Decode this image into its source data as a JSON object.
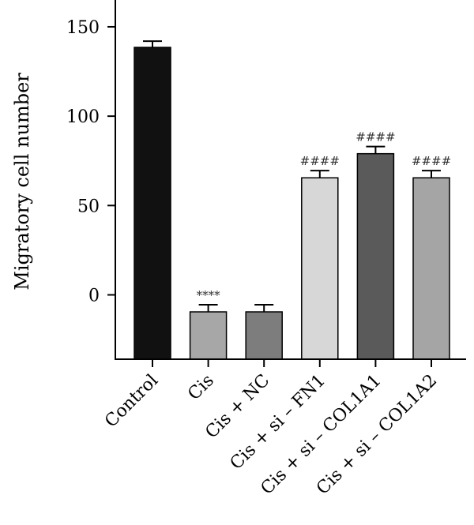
{
  "chart_data": {
    "type": "bar",
    "title": "",
    "xlabel": "",
    "ylabel": "Migratory cell number",
    "ylim": [
      -36,
      165
    ],
    "yticks": [
      0,
      50,
      100,
      150
    ],
    "grid": false,
    "categories": [
      "Control",
      "Cis",
      "Cis + NC",
      "Cis + si – FN1",
      "Cis + si – COL1A1",
      "Cis + si – COL1A2"
    ],
    "values": [
      138.5,
      -9.5,
      -9.5,
      65.5,
      79,
      65.5
    ],
    "errors": [
      3.5,
      4,
      4,
      4,
      4,
      4
    ],
    "colors": [
      "#111111",
      "#a7a7a7",
      "#7d7d7d",
      "#d7d7d7",
      "#5a5a5a",
      "#a5a5a5"
    ],
    "significance": [
      "",
      "****",
      "",
      "####",
      "####",
      "####"
    ]
  }
}
